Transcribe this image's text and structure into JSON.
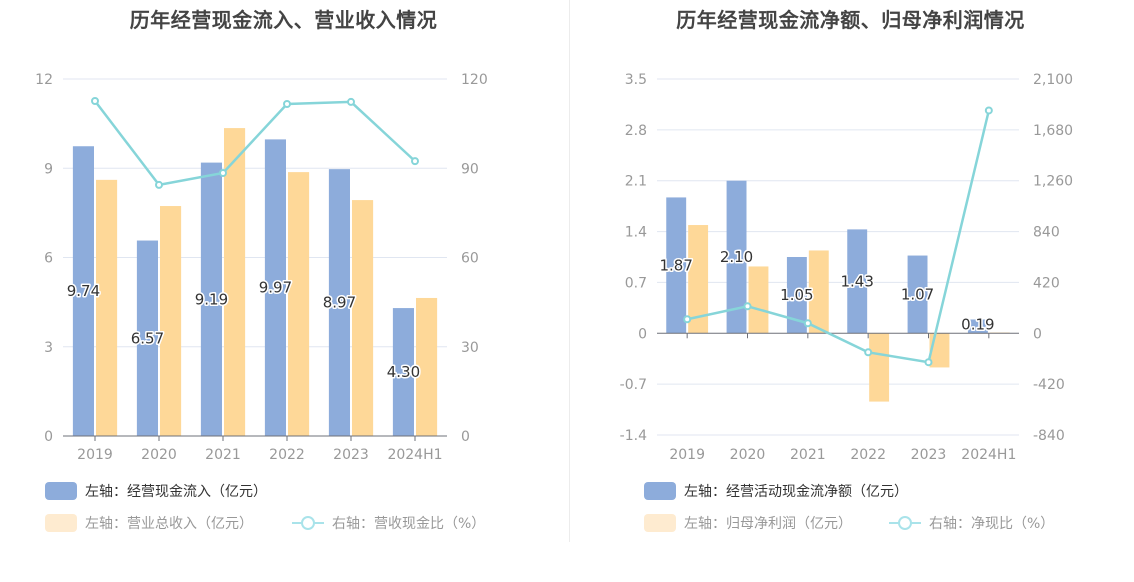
{
  "chart_data": [
    {
      "type": "bar+line",
      "title": "历年经营现金流入、营业收入情况",
      "categories": [
        "2019",
        "2020",
        "2021",
        "2022",
        "2023",
        "2024H1"
      ],
      "left_axis": {
        "min": 0,
        "max": 12,
        "ticks": [
          "0",
          "3",
          "6",
          "9",
          "12"
        ]
      },
      "right_axis": {
        "min": 0,
        "max": 120,
        "ticks": [
          "0",
          "30",
          "60",
          "90",
          "120"
        ]
      },
      "grid": true,
      "legend_position": "bottom-left",
      "series": [
        {
          "name": "左轴：经营现金流入（亿元）",
          "kind": "bar",
          "axis": "left",
          "color": "#8dacdb",
          "values": [
            9.74,
            6.57,
            9.19,
            9.97,
            8.97,
            4.3
          ],
          "labels": [
            "9.74",
            "6.57",
            "9.19",
            "9.97",
            "8.97",
            "4.30"
          ]
        },
        {
          "name": "左轴：营业总收入（亿元）",
          "kind": "bar",
          "axis": "left",
          "color": "#fed898",
          "legend_color": "#feebd0",
          "values": [
            8.61,
            7.73,
            10.35,
            8.87,
            7.93,
            4.64
          ]
        },
        {
          "name": "右轴：营收现金比（%）",
          "kind": "line",
          "axis": "right",
          "color": "#86d5d9",
          "values": [
            112.6,
            84.4,
            88.4,
            111.6,
            112.3,
            92.4
          ]
        }
      ]
    },
    {
      "type": "bar+line",
      "title": "历年经营现金流净额、归母净利润情况",
      "categories": [
        "2019",
        "2020",
        "2021",
        "2022",
        "2023",
        "2024H1"
      ],
      "left_axis": {
        "min": -1.4,
        "max": 3.5,
        "ticks": [
          "-1.4",
          "-0.7",
          "0",
          "0.7",
          "1.4",
          "2.1",
          "2.8",
          "3.5"
        ]
      },
      "right_axis": {
        "min": -840,
        "max": 2100,
        "ticks": [
          "-840",
          "-420",
          "0",
          "420",
          "840",
          "1,260",
          "1,680",
          "2,100"
        ]
      },
      "grid": true,
      "legend_position": "bottom-left",
      "series": [
        {
          "name": "左轴：经营活动现金流净额（亿元）",
          "kind": "bar",
          "axis": "left",
          "color": "#8dacdb",
          "values": [
            1.87,
            2.1,
            1.05,
            1.43,
            1.07,
            0.19
          ],
          "labels": [
            "1.87",
            "2.10",
            "1.05",
            "1.43",
            "1.07",
            "0.19"
          ]
        },
        {
          "name": "左轴：归母净利润（亿元）",
          "kind": "bar",
          "axis": "left",
          "color": "#fed898",
          "legend_color": "#feebd0",
          "values": [
            1.49,
            0.92,
            1.14,
            -0.94,
            -0.47,
            0.01
          ]
        },
        {
          "name": "右轴：净现比（%）",
          "kind": "line",
          "axis": "right",
          "color": "#86d5d9",
          "values": [
            116,
            223,
            83,
            -157,
            -239,
            1840
          ]
        }
      ]
    }
  ]
}
